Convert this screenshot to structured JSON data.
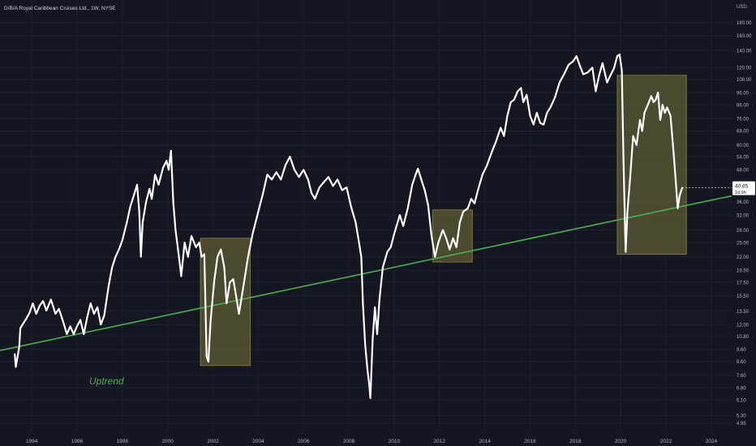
{
  "header": {
    "title": "D/B/A Royal Caribbean Cruises Ltd., 1W, NYSE"
  },
  "price_axis": {
    "currency": "USD"
  },
  "price_badge": {
    "price": "40.85",
    "countdown": "1d 9h"
  },
  "annotation": {
    "label": "Uptrend"
  },
  "colors": {
    "background": "#141722",
    "grid": "#1e2230",
    "price_line": "#ffffff",
    "trendline": "#4caf50",
    "highlight_fill": "rgba(122,117,56,0.55)",
    "highlight_stroke": "#7c763f",
    "axis_text": "#b2b5be",
    "label_green": "#4caf50"
  },
  "chart_data": {
    "type": "line",
    "title": "D/B/A Royal Caribbean Cruises Ltd., 1W, NYSE",
    "xlabel": "",
    "ylabel": "USD",
    "y_scale": "log",
    "xlim": [
      1992.6,
      2024.9
    ],
    "ylim": [
      4.6,
      220
    ],
    "x_ticks": [
      1994,
      1996,
      1998,
      2000,
      2002,
      2004,
      2006,
      2008,
      2010,
      2012,
      2014,
      2016,
      2018,
      2020,
      2022,
      2024
    ],
    "y_ticks": [
      {
        "v": 4.95,
        "label": "4.95"
      },
      {
        "v": 5.3,
        "label": "5.30"
      },
      {
        "v": 6.1,
        "label": "6.10"
      },
      {
        "v": 6.8,
        "label": "6.80"
      },
      {
        "v": 7.6,
        "label": "7.60"
      },
      {
        "v": 8.6,
        "label": "8.60"
      },
      {
        "v": 9.6,
        "label": "9.60"
      },
      {
        "v": 10.8,
        "label": "10.80"
      },
      {
        "v": 12.0,
        "label": "12.00"
      },
      {
        "v": 13.5,
        "label": "13.50"
      },
      {
        "v": 15.5,
        "label": "15.50"
      },
      {
        "v": 17.5,
        "label": "17.50"
      },
      {
        "v": 19.5,
        "label": "19.50"
      },
      {
        "v": 22.0,
        "label": "22.00"
      },
      {
        "v": 25.0,
        "label": "25.00"
      },
      {
        "v": 28.0,
        "label": "28.00"
      },
      {
        "v": 32.0,
        "label": "32.00"
      },
      {
        "v": 36.0,
        "label": "36.00"
      },
      {
        "v": 48.0,
        "label": "48.00"
      },
      {
        "v": 54.0,
        "label": "54.00"
      },
      {
        "v": 60.0,
        "label": "60.00"
      },
      {
        "v": 68.0,
        "label": "68.00"
      },
      {
        "v": 76.0,
        "label": "76.00"
      },
      {
        "v": 86.0,
        "label": "86.00"
      },
      {
        "v": 96.0,
        "label": "96.00"
      },
      {
        "v": 108.0,
        "label": "108.00"
      },
      {
        "v": 120.0,
        "label": "120.00"
      },
      {
        "v": 140.0,
        "label": "140.00"
      },
      {
        "v": 160.0,
        "label": "160.00"
      },
      {
        "v": 180.0,
        "label": "180.00"
      }
    ],
    "grid": true,
    "series": [
      {
        "points": [
          [
            1993.25,
            9.2
          ],
          [
            1993.3,
            8.2
          ],
          [
            1993.45,
            9.8
          ],
          [
            1993.5,
            11.6
          ],
          [
            1993.6,
            12.0
          ],
          [
            1993.75,
            12.6
          ],
          [
            1993.9,
            13.3
          ],
          [
            1994.05,
            14.5
          ],
          [
            1994.2,
            13.2
          ],
          [
            1994.35,
            14.2
          ],
          [
            1994.5,
            14.8
          ],
          [
            1994.65,
            13.6
          ],
          [
            1994.85,
            15.0
          ],
          [
            1995.05,
            13.2
          ],
          [
            1995.2,
            13.8
          ],
          [
            1995.4,
            12.2
          ],
          [
            1995.55,
            11.0
          ],
          [
            1995.7,
            11.8
          ],
          [
            1995.85,
            11.0
          ],
          [
            1996.0,
            11.8
          ],
          [
            1996.15,
            12.5
          ],
          [
            1996.3,
            11.0
          ],
          [
            1996.45,
            12.8
          ],
          [
            1996.6,
            14.5
          ],
          [
            1996.75,
            13.2
          ],
          [
            1996.9,
            14.0
          ],
          [
            1997.05,
            12.0
          ],
          [
            1997.2,
            13.0
          ],
          [
            1997.4,
            17.0
          ],
          [
            1997.55,
            20.0
          ],
          [
            1997.7,
            22.0
          ],
          [
            1997.85,
            23.5
          ],
          [
            1998.0,
            25.5
          ],
          [
            1998.2,
            30.0
          ],
          [
            1998.35,
            34.5
          ],
          [
            1998.5,
            38.0
          ],
          [
            1998.65,
            42.0
          ],
          [
            1998.75,
            33.0
          ],
          [
            1998.82,
            22.0
          ],
          [
            1998.9,
            30.0
          ],
          [
            1999.05,
            36.0
          ],
          [
            1999.2,
            40.5
          ],
          [
            1999.3,
            37.0
          ],
          [
            1999.45,
            46.0
          ],
          [
            1999.6,
            42.0
          ],
          [
            1999.8,
            49.0
          ],
          [
            1999.95,
            52.0
          ],
          [
            2000.05,
            48.0
          ],
          [
            2000.15,
            57.0
          ],
          [
            2000.25,
            36.0
          ],
          [
            2000.35,
            28.0
          ],
          [
            2000.5,
            22.0
          ],
          [
            2000.6,
            18.5
          ],
          [
            2000.75,
            25.0
          ],
          [
            2000.9,
            22.0
          ],
          [
            2001.05,
            26.5
          ],
          [
            2001.25,
            24.0
          ],
          [
            2001.4,
            25.0
          ],
          [
            2001.5,
            22.0
          ],
          [
            2001.62,
            22.5
          ],
          [
            2001.72,
            9.0
          ],
          [
            2001.8,
            8.6
          ],
          [
            2001.9,
            12.5
          ],
          [
            2002.05,
            17.5
          ],
          [
            2002.2,
            22.0
          ],
          [
            2002.35,
            23.5
          ],
          [
            2002.5,
            20.0
          ],
          [
            2002.6,
            14.5
          ],
          [
            2002.75,
            17.5
          ],
          [
            2002.9,
            18.0
          ],
          [
            2003.05,
            15.0
          ],
          [
            2003.15,
            13.2
          ],
          [
            2003.35,
            17.0
          ],
          [
            2003.55,
            22.0
          ],
          [
            2003.75,
            27.0
          ],
          [
            2004.0,
            33.0
          ],
          [
            2004.2,
            38.5
          ],
          [
            2004.4,
            46.0
          ],
          [
            2004.6,
            44.0
          ],
          [
            2004.8,
            47.0
          ],
          [
            2005.0,
            44.0
          ],
          [
            2005.2,
            50.0
          ],
          [
            2005.4,
            54.0
          ],
          [
            2005.6,
            48.0
          ],
          [
            2005.8,
            45.0
          ],
          [
            2006.0,
            48.0
          ],
          [
            2006.2,
            44.0
          ],
          [
            2006.35,
            39.0
          ],
          [
            2006.5,
            37.0
          ],
          [
            2006.7,
            41.0
          ],
          [
            2006.9,
            43.0
          ],
          [
            2007.1,
            45.0
          ],
          [
            2007.3,
            41.5
          ],
          [
            2007.5,
            44.0
          ],
          [
            2007.7,
            40.0
          ],
          [
            2007.9,
            41.0
          ],
          [
            2008.1,
            34.5
          ],
          [
            2008.3,
            30.0
          ],
          [
            2008.45,
            25.0
          ],
          [
            2008.55,
            22.0
          ],
          [
            2008.62,
            14.5
          ],
          [
            2008.72,
            10.0
          ],
          [
            2008.82,
            8.0
          ],
          [
            2008.9,
            7.0
          ],
          [
            2008.95,
            6.2
          ],
          [
            2009.05,
            10.5
          ],
          [
            2009.15,
            14.0
          ],
          [
            2009.25,
            11.0
          ],
          [
            2009.35,
            15.0
          ],
          [
            2009.5,
            20.0
          ],
          [
            2009.7,
            23.0
          ],
          [
            2009.85,
            24.0
          ],
          [
            2010.0,
            27.0
          ],
          [
            2010.25,
            32.0
          ],
          [
            2010.4,
            29.0
          ],
          [
            2010.6,
            34.0
          ],
          [
            2010.8,
            42.0
          ],
          [
            2010.95,
            46.0
          ],
          [
            2011.05,
            48.5
          ],
          [
            2011.2,
            44.0
          ],
          [
            2011.35,
            40.0
          ],
          [
            2011.5,
            35.0
          ],
          [
            2011.65,
            26.5
          ],
          [
            2011.8,
            22.0
          ],
          [
            2011.95,
            25.0
          ],
          [
            2012.15,
            28.0
          ],
          [
            2012.3,
            26.0
          ],
          [
            2012.45,
            23.5
          ],
          [
            2012.6,
            26.0
          ],
          [
            2012.75,
            24.0
          ],
          [
            2012.9,
            30.0
          ],
          [
            2013.05,
            33.0
          ],
          [
            2013.25,
            34.0
          ],
          [
            2013.4,
            37.0
          ],
          [
            2013.55,
            35.5
          ],
          [
            2013.7,
            40.0
          ],
          [
            2013.9,
            46.0
          ],
          [
            2014.1,
            50.0
          ],
          [
            2014.3,
            56.0
          ],
          [
            2014.5,
            62.0
          ],
          [
            2014.7,
            70.0
          ],
          [
            2014.85,
            65.0
          ],
          [
            2015.0,
            78.0
          ],
          [
            2015.15,
            88.0
          ],
          [
            2015.3,
            90.0
          ],
          [
            2015.45,
            97.0
          ],
          [
            2015.6,
            100.0
          ],
          [
            2015.7,
            88.0
          ],
          [
            2015.85,
            94.0
          ],
          [
            2016.0,
            78.0
          ],
          [
            2016.15,
            72.0
          ],
          [
            2016.3,
            80.0
          ],
          [
            2016.45,
            73.0
          ],
          [
            2016.6,
            72.0
          ],
          [
            2016.75,
            80.0
          ],
          [
            2016.9,
            84.0
          ],
          [
            2017.1,
            92.0
          ],
          [
            2017.3,
            105.0
          ],
          [
            2017.5,
            113.0
          ],
          [
            2017.7,
            123.0
          ],
          [
            2017.9,
            127.0
          ],
          [
            2018.05,
            133.0
          ],
          [
            2018.2,
            122.0
          ],
          [
            2018.35,
            113.0
          ],
          [
            2018.55,
            115.0
          ],
          [
            2018.75,
            120.0
          ],
          [
            2018.9,
            97.0
          ],
          [
            2019.05,
            112.0
          ],
          [
            2019.2,
            125.0
          ],
          [
            2019.4,
            105.0
          ],
          [
            2019.55,
            112.0
          ],
          [
            2019.7,
            119.0
          ],
          [
            2019.85,
            133.0
          ],
          [
            2019.95,
            135.0
          ],
          [
            2020.05,
            117.0
          ],
          [
            2020.12,
            55.0
          ],
          [
            2020.17,
            35.0
          ],
          [
            2020.22,
            23.0
          ],
          [
            2020.3,
            33.0
          ],
          [
            2020.42,
            45.0
          ],
          [
            2020.55,
            65.0
          ],
          [
            2020.7,
            60.0
          ],
          [
            2020.85,
            75.0
          ],
          [
            2020.95,
            68.0
          ],
          [
            2021.05,
            80.0
          ],
          [
            2021.2,
            86.0
          ],
          [
            2021.35,
            93.0
          ],
          [
            2021.45,
            88.0
          ],
          [
            2021.55,
            90.0
          ],
          [
            2021.65,
            96.0
          ],
          [
            2021.75,
            75.0
          ],
          [
            2021.85,
            86.0
          ],
          [
            2021.95,
            80.0
          ],
          [
            2022.05,
            84.0
          ],
          [
            2022.2,
            78.0
          ],
          [
            2022.32,
            58.0
          ],
          [
            2022.42,
            45.0
          ],
          [
            2022.52,
            34.0
          ],
          [
            2022.6,
            38.0
          ],
          [
            2022.68,
            40.0
          ],
          [
            2022.72,
            40.85
          ]
        ]
      }
    ],
    "trendline": {
      "from": [
        1992.6,
        9.5
      ],
      "to": [
        2024.9,
        38.0
      ]
    },
    "highlight_boxes": [
      {
        "x": [
          2001.45,
          2003.65
        ],
        "y": [
          8.3,
          26.0
        ]
      },
      {
        "x": [
          2011.7,
          2013.45
        ],
        "y": [
          21.0,
          33.5
        ]
      },
      {
        "x": [
          2019.85,
          2022.9
        ],
        "y": [
          22.5,
          112.0
        ]
      }
    ],
    "last_value": 40.85
  }
}
